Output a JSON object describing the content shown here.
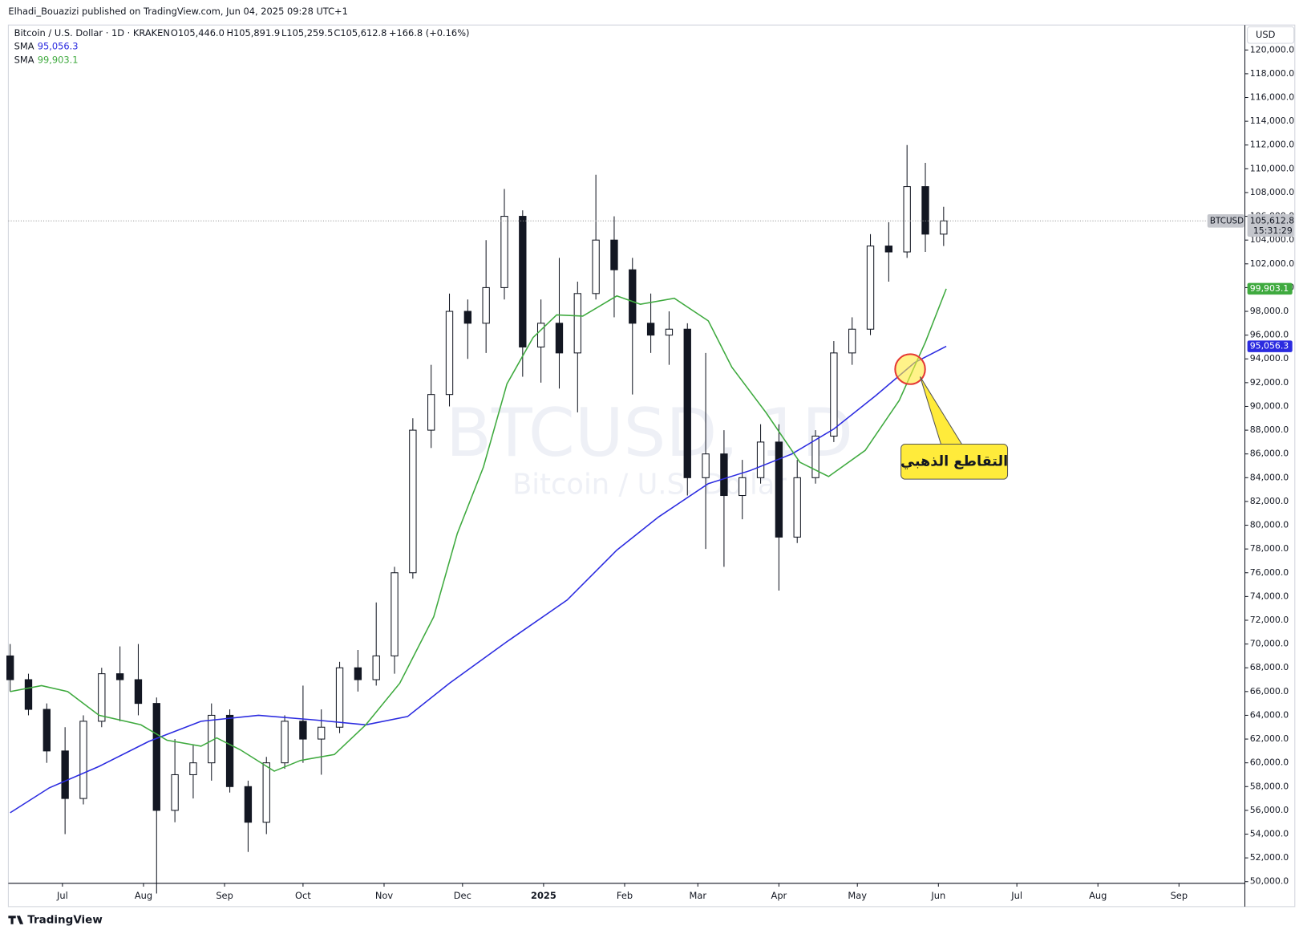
{
  "header": {
    "publisher": "Elhadi_Bouazizi published on TradingView.com, Jun 04, 2025 09:28 UTC+1"
  },
  "legend": {
    "symbol": "Bitcoin / U.S. Dollar · 1D · KRAKEN",
    "open": "O105,446.0",
    "high": "H105,891.9",
    "low": "L105,259.5",
    "close": "C105,612.8",
    "change": "+166.8 (+0.16%)"
  },
  "watermark": {
    "symbol": "BTCUSD, 1D",
    "name": "Bitcoin / U.S. Dollar"
  },
  "annotation": "التقاطع الذهبي",
  "footer": "TradingView",
  "chart_data": {
    "type": "candlestick",
    "currency": "USD",
    "ticker": "BTCUSD",
    "countdown": "15:31:29",
    "last_price": {
      "value": 105612.8,
      "label": "105,612.8"
    },
    "xlim": [
      -20.7,
      452.2
    ],
    "ylim": [
      49860,
      122100
    ],
    "xticks": [
      {
        "value": 0,
        "label": "Jul"
      },
      {
        "value": 31,
        "label": "Aug"
      },
      {
        "value": 62,
        "label": "Sep"
      },
      {
        "value": 92,
        "label": "Oct"
      },
      {
        "value": 123,
        "label": "Nov"
      },
      {
        "value": 153,
        "label": "Dec"
      },
      {
        "value": 184,
        "label": "2025"
      },
      {
        "value": 215,
        "label": "Feb"
      },
      {
        "value": 243,
        "label": "Mar"
      },
      {
        "value": 274,
        "label": "Apr"
      },
      {
        "value": 304,
        "label": "May"
      },
      {
        "value": 335,
        "label": "Jun"
      },
      {
        "value": 365,
        "label": "Jul"
      },
      {
        "value": 396,
        "label": "Aug"
      },
      {
        "value": 427,
        "label": "Sep"
      }
    ],
    "yticks": [
      {
        "value": 50000,
        "label": "50,000.0"
      },
      {
        "value": 52000,
        "label": "52,000.0"
      },
      {
        "value": 54000,
        "label": "54,000.0"
      },
      {
        "value": 56000,
        "label": "56,000.0"
      },
      {
        "value": 58000,
        "label": "58,000.0"
      },
      {
        "value": 60000,
        "label": "60,000.0"
      },
      {
        "value": 62000,
        "label": "62,000.0"
      },
      {
        "value": 64000,
        "label": "64,000.0"
      },
      {
        "value": 66000,
        "label": "66,000.0"
      },
      {
        "value": 68000,
        "label": "68,000.0"
      },
      {
        "value": 70000,
        "label": "70,000.0"
      },
      {
        "value": 72000,
        "label": "72,000.0"
      },
      {
        "value": 74000,
        "label": "74,000.0"
      },
      {
        "value": 76000,
        "label": "76,000.0"
      },
      {
        "value": 78000,
        "label": "78,000.0"
      },
      {
        "value": 80000,
        "label": "80,000.0"
      },
      {
        "value": 82000,
        "label": "82,000.0"
      },
      {
        "value": 84000,
        "label": "84,000.0"
      },
      {
        "value": 86000,
        "label": "86,000.0"
      },
      {
        "value": 88000,
        "label": "88,000.0"
      },
      {
        "value": 90000,
        "label": "90,000.0"
      },
      {
        "value": 92000,
        "label": "92,000.0"
      },
      {
        "value": 94000,
        "label": "94,000.0"
      },
      {
        "value": 96000,
        "label": "96,000.0"
      },
      {
        "value": 98000,
        "label": "98,000.0"
      },
      {
        "value": 100000,
        "label": "100,000.0"
      },
      {
        "value": 102000,
        "label": "102,000.0"
      },
      {
        "value": 104000,
        "label": "104,000.0"
      },
      {
        "value": 106000,
        "label": "106,000.0"
      },
      {
        "value": 108000,
        "label": "108,000.0"
      },
      {
        "value": 110000,
        "label": "110,000.0"
      },
      {
        "value": 112000,
        "label": "112,000.0"
      },
      {
        "value": 114000,
        "label": "114,000.0"
      },
      {
        "value": 116000,
        "label": "116,000.0"
      },
      {
        "value": 118000,
        "label": "118,000.0"
      },
      {
        "value": 120000,
        "label": "120,000.0"
      }
    ],
    "x": [
      -20,
      -13,
      -6,
      1,
      8,
      15,
      22,
      29,
      36,
      43,
      50,
      57,
      64,
      71,
      78,
      85,
      92,
      99,
      106,
      113,
      120,
      127,
      134,
      141,
      148,
      155,
      162,
      169,
      176,
      183,
      190,
      197,
      204,
      211,
      218,
      225,
      232,
      239,
      246,
      253,
      260,
      267,
      274,
      281,
      288,
      295,
      302,
      309,
      316,
      323,
      330,
      337
    ],
    "open": [
      69000,
      67000,
      64500,
      61000,
      57000,
      63500,
      67500,
      67000,
      65000,
      56000,
      59000,
      60000,
      64000,
      58000,
      55000,
      60000,
      63500,
      62000,
      63000,
      68000,
      67000,
      69000,
      76000,
      88000,
      91000,
      98000,
      97000,
      100000,
      106000,
      95000,
      97000,
      94500,
      99500,
      104000,
      101500,
      97000,
      96000,
      96500,
      84000,
      86000,
      82500,
      84000,
      87000,
      79000,
      84000,
      87500,
      94500,
      96500,
      103500,
      103000,
      108500,
      104500
    ],
    "high": [
      70000,
      67500,
      65000,
      63000,
      64000,
      68000,
      69800,
      70000,
      65500,
      62000,
      61500,
      65000,
      64500,
      58500,
      60500,
      64000,
      66500,
      64500,
      68500,
      69500,
      73500,
      76500,
      89000,
      93500,
      99500,
      99000,
      104000,
      108300,
      106500,
      99000,
      102500,
      100500,
      109500,
      106000,
      102500,
      99500,
      98000,
      97000,
      94500,
      88000,
      85500,
      88500,
      88500,
      85500,
      88000,
      95500,
      97500,
      104500,
      105500,
      112000,
      110500,
      106800
    ],
    "low": [
      66000,
      64000,
      60000,
      54000,
      56500,
      63000,
      63500,
      64000,
      49000,
      55000,
      57000,
      58500,
      57500,
      52500,
      54000,
      59500,
      60000,
      59000,
      62500,
      66000,
      66500,
      67500,
      75500,
      86500,
      90000,
      94000,
      94500,
      99000,
      92500,
      92000,
      91500,
      89500,
      99000,
      97500,
      91000,
      94500,
      93500,
      82500,
      78000,
      76500,
      80500,
      83500,
      74500,
      78500,
      83500,
      87000,
      93500,
      96000,
      100500,
      102500,
      103000,
      103500
    ],
    "close": [
      67000,
      64500,
      61000,
      57000,
      63500,
      67500,
      67000,
      65000,
      56000,
      59000,
      60000,
      64000,
      58000,
      55000,
      60000,
      63500,
      62000,
      63000,
      68000,
      67000,
      69000,
      76000,
      88000,
      91000,
      98000,
      97000,
      100000,
      106000,
      95000,
      97000,
      94500,
      99500,
      104000,
      101500,
      97000,
      96000,
      96500,
      84000,
      86000,
      82500,
      84000,
      87000,
      79000,
      84000,
      87500,
      94500,
      96500,
      103500,
      103000,
      108500,
      104500,
      105612.8
    ],
    "series": [
      {
        "name": "SMA",
        "color": "#2b2be0",
        "last": {
          "value": 95056.3,
          "label": "95,056.3"
        },
        "x": [
          -20,
          -5,
          14,
          33,
          53,
          75,
          97,
          116,
          132,
          148,
          170,
          193,
          212,
          228,
          247,
          263,
          279,
          295,
          311,
          326,
          338
        ],
        "values": [
          55800,
          57900,
          59700,
          61800,
          63500,
          64000,
          63600,
          63200,
          63900,
          66700,
          70200,
          73700,
          77900,
          80700,
          83500,
          84600,
          86000,
          88100,
          90900,
          93700,
          95056.3
        ]
      },
      {
        "name": "SMA",
        "color": "#3faa3f",
        "last": {
          "value": 99903.1,
          "label": "99,903.1"
        },
        "x": [
          -20,
          -8,
          2,
          14,
          30,
          40,
          53,
          59,
          68,
          81,
          91,
          104,
          116,
          129,
          142,
          151,
          161,
          170,
          180,
          189,
          199,
          212,
          221,
          234,
          247,
          256,
          269,
          282,
          293,
          307,
          320,
          330,
          338
        ],
        "values": [
          66000,
          66500,
          66000,
          64000,
          63200,
          61900,
          61400,
          62100,
          61100,
          59300,
          60200,
          60700,
          63200,
          66700,
          72300,
          79300,
          84900,
          91900,
          95800,
          97700,
          97600,
          99300,
          98600,
          99100,
          97200,
          93300,
          89500,
          85300,
          84100,
          86300,
          90500,
          95400,
          99903.1
        ]
      }
    ]
  }
}
